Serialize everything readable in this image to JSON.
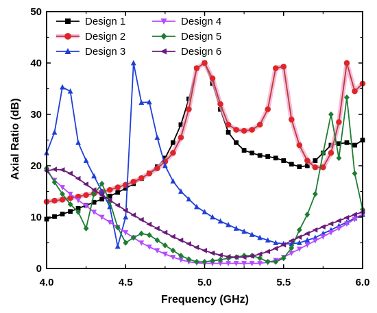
{
  "chart_data": {
    "type": "line",
    "xlabel": "Frequency (GHz)",
    "ylabel": "Axial Ratio (dB)",
    "xlim": [
      4.0,
      6.0
    ],
    "ylim": [
      0,
      50
    ],
    "xticks": [
      "4.0",
      "4.5",
      "5.0",
      "5.5",
      "6.0"
    ],
    "yticks": [
      "0",
      "10",
      "20",
      "30",
      "40",
      "50"
    ],
    "grid": false,
    "legend_position": "top",
    "x": [
      4.0,
      4.05,
      4.1,
      4.15,
      4.2,
      4.25,
      4.3,
      4.35,
      4.4,
      4.45,
      4.5,
      4.55,
      4.6,
      4.65,
      4.7,
      4.75,
      4.8,
      4.85,
      4.9,
      4.95,
      5.0,
      5.05,
      5.1,
      5.15,
      5.2,
      5.25,
      5.3,
      5.35,
      5.4,
      5.45,
      5.5,
      5.55,
      5.6,
      5.65,
      5.7,
      5.75,
      5.8,
      5.85,
      5.9,
      5.95,
      6.0
    ],
    "series": [
      {
        "name": "Design 1",
        "color": "#000000",
        "marker": "square",
        "values": [
          9.6,
          10.1,
          10.6,
          11.1,
          11.7,
          12.3,
          12.9,
          13.5,
          14.1,
          14.8,
          15.6,
          16.5,
          17.5,
          18.6,
          19.8,
          21.5,
          24.5,
          28.0,
          33.0,
          39.0,
          40.0,
          36.0,
          31.0,
          26.5,
          24.5,
          23.0,
          22.5,
          22.0,
          21.8,
          21.5,
          21.0,
          20.3,
          19.8,
          20.0,
          21.0,
          22.5,
          24.0,
          24.3,
          24.5,
          24.0,
          25.0
        ]
      },
      {
        "name": "Design 2",
        "color": "#c0392b",
        "marker": "circle",
        "values": [
          13.0,
          13.2,
          13.4,
          13.7,
          14.0,
          14.3,
          14.6,
          14.9,
          15.3,
          15.8,
          16.3,
          16.9,
          17.6,
          18.5,
          19.5,
          20.8,
          22.5,
          25.5,
          31.0,
          39.0,
          40.0,
          37.0,
          32.0,
          28.0,
          27.0,
          26.8,
          27.0,
          28.0,
          31.0,
          39.0,
          39.3,
          29.0,
          24.0,
          21.0,
          19.7,
          19.7,
          22.5,
          28.5,
          40.0,
          34.5,
          36.0
        ]
      },
      {
        "name": "Design 3",
        "color": "#1f3fd6",
        "marker": "triangle-up",
        "values": [
          22.5,
          26.5,
          35.3,
          34.5,
          24.5,
          21.0,
          18.0,
          15.0,
          12.0,
          4.3,
          10.0,
          40.0,
          32.3,
          32.4,
          25.5,
          20.0,
          17.0,
          15.0,
          13.5,
          12.0,
          11.0,
          10.0,
          9.2,
          8.5,
          7.8,
          7.2,
          6.6,
          6.0,
          5.5,
          5.0,
          4.8,
          4.8,
          5.0,
          5.5,
          6.0,
          6.8,
          7.5,
          8.3,
          9.0,
          9.8,
          10.5
        ]
      },
      {
        "name": "Design 4",
        "color": "#b44bff",
        "marker": "triangle-down",
        "values": [
          19.0,
          17.2,
          15.8,
          14.5,
          13.3,
          12.2,
          11.0,
          10.0,
          9.0,
          8.0,
          7.0,
          6.0,
          5.0,
          4.2,
          3.5,
          2.8,
          2.2,
          1.7,
          1.3,
          1.1,
          1.0,
          1.0,
          1.0,
          1.0,
          1.0,
          1.0,
          1.0,
          1.0,
          1.2,
          1.6,
          2.2,
          3.0,
          3.8,
          4.6,
          5.4,
          6.2,
          7.0,
          7.8,
          8.7,
          9.6,
          10.5
        ]
      },
      {
        "name": "Design 5",
        "color": "#1e7d32",
        "marker": "diamond",
        "values": [
          19.5,
          16.8,
          14.5,
          12.5,
          11.0,
          7.8,
          14.5,
          16.5,
          13.0,
          8.0,
          5.0,
          6.0,
          6.8,
          6.5,
          5.5,
          4.5,
          3.5,
          2.5,
          1.8,
          1.3,
          1.3,
          1.5,
          1.7,
          2.0,
          2.2,
          2.5,
          2.5,
          2.0,
          1.3,
          1.3,
          2.0,
          4.0,
          7.5,
          10.5,
          14.5,
          22.5,
          30.0,
          21.5,
          33.3,
          18.5,
          11.5
        ]
      },
      {
        "name": "Design 6",
        "color": "#6a1b7a",
        "marker": "triangle-left",
        "values": [
          19.0,
          19.3,
          19.2,
          18.5,
          17.5,
          16.4,
          15.3,
          14.3,
          13.3,
          12.3,
          11.3,
          10.4,
          9.5,
          8.6,
          7.8,
          7.0,
          6.2,
          5.5,
          4.8,
          4.1,
          3.5,
          3.0,
          2.6,
          2.3,
          2.2,
          2.2,
          2.4,
          2.8,
          3.3,
          3.9,
          4.6,
          5.4,
          6.1,
          6.8,
          7.5,
          8.1,
          8.7,
          9.3,
          9.9,
          10.5,
          11.0
        ]
      }
    ]
  }
}
